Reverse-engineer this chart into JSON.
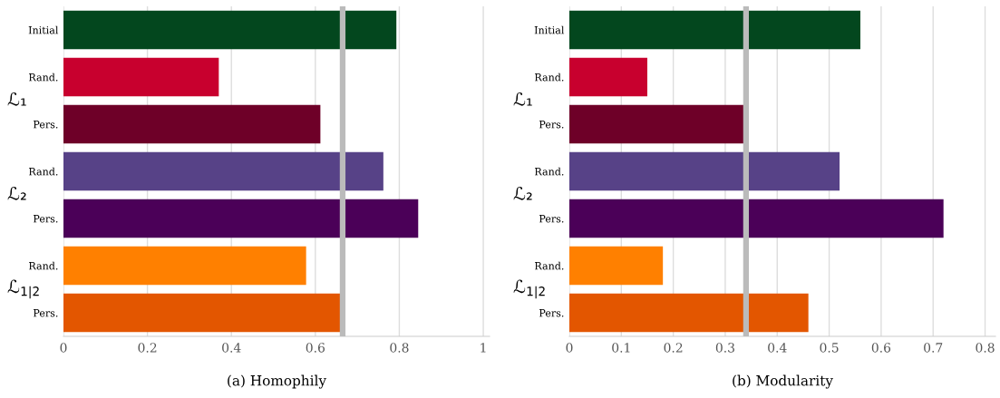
{
  "chart_data": [
    {
      "type": "bar",
      "orientation": "horizontal",
      "xlabel": "(a) Homophily",
      "categories": [
        "Initial",
        "Rand.",
        "Pers.",
        "Rand.",
        "Pers.",
        "Rand.",
        "Pers."
      ],
      "values": [
        0.793,
        0.37,
        0.612,
        0.762,
        0.845,
        0.578,
        0.661
      ],
      "colors": [
        "#03471e",
        "#c8002e",
        "#6e0028",
        "#574287",
        "#4b0058",
        "#ff8000",
        "#e35600"
      ],
      "xlim": [
        0,
        1.015
      ],
      "xticks": [
        0,
        0.2,
        0.4,
        0.6,
        0.8,
        1
      ],
      "grid": "x",
      "ref_lines": [
        {
          "axis": "x",
          "value": 0.665,
          "color": "#bbbbbb"
        }
      ],
      "annotations": [
        "ℒ₁",
        "ℒ₂",
        "ℒ$_{1|2}$"
      ]
    },
    {
      "type": "bar",
      "orientation": "horizontal",
      "xlabel": "(b) Modularity",
      "categories": [
        "Initial",
        "Rand.",
        "Pers.",
        "Rand.",
        "Pers.",
        "Rand.",
        "Pers."
      ],
      "values": [
        0.56,
        0.15,
        0.338,
        0.52,
        0.72,
        0.18,
        0.46
      ],
      "colors": [
        "#03471e",
        "#c8002e",
        "#6e0028",
        "#574287",
        "#4b0058",
        "#ff8000",
        "#e35600"
      ],
      "xlim": [
        0,
        0.82
      ],
      "xticks": [
        0,
        0.1,
        0.2,
        0.3,
        0.4,
        0.5,
        0.6,
        0.7,
        0.8
      ],
      "grid": "x",
      "ref_lines": [
        {
          "axis": "x",
          "value": 0.34,
          "color": "#bbbbbb"
        }
      ],
      "annotations": [
        "ℒ₁",
        "ℒ₂",
        "ℒ$_{1|2}$"
      ]
    }
  ]
}
